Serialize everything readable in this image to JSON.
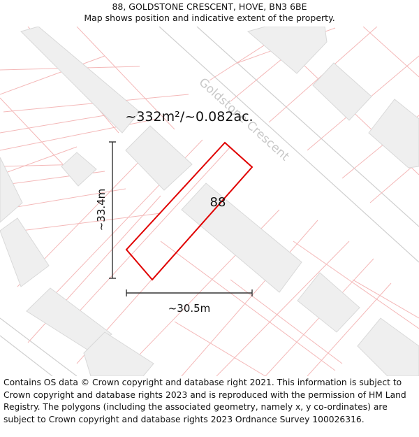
{
  "header": {
    "title": "88, GOLDSTONE CRESCENT, HOVE, BN3 6BE",
    "subtitle": "Map shows position and indicative extent of the property."
  },
  "map": {
    "street_name": "Goldstone Crescent",
    "house_number": "88",
    "area_label": "~332m²/~0.082ac.",
    "height_label": "~33.4m",
    "width_label": "~30.5m",
    "colors": {
      "parcel_line": "#f4b8b8",
      "building_fill": "#efefef",
      "building_stroke": "#d9d9d9",
      "road_edge": "#cfcfcf",
      "property_outline": "#e00000",
      "street_label": "#c8c8c8"
    }
  },
  "footer": {
    "attribution": "Contains OS data © Crown copyright and database right 2021. This information is subject to Crown copyright and database rights 2023 and is reproduced with the permission of HM Land Registry. The polygons (including the associated geometry, namely x, y co-ordinates) are subject to Crown copyright and database rights 2023 Ordnance Survey 100026316."
  }
}
